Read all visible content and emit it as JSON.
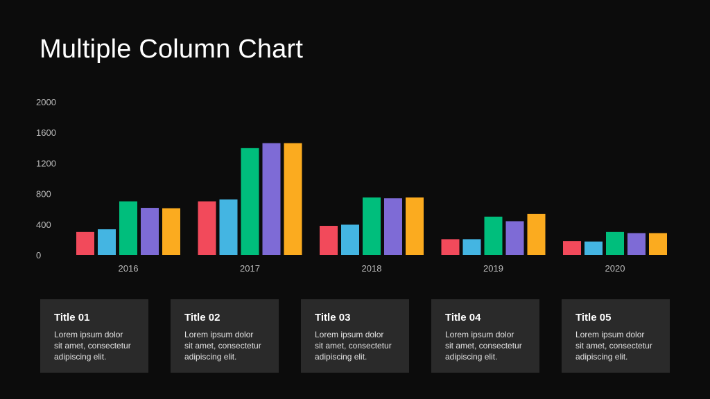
{
  "title": "Multiple Column Chart",
  "chart_data": {
    "type": "bar",
    "categories": [
      "2016",
      "2017",
      "2018",
      "2019",
      "2020"
    ],
    "series": [
      {
        "color": "#f24a5b",
        "values": [
          300,
          700,
          380,
          205,
          180
        ]
      },
      {
        "color": "#44b5e2",
        "values": [
          335,
          725,
          395,
          205,
          175
        ]
      },
      {
        "color": "#00be7c",
        "values": [
          700,
          1395,
          750,
          500,
          300
        ]
      },
      {
        "color": "#7e6bd6",
        "values": [
          615,
          1460,
          740,
          440,
          285
        ]
      },
      {
        "color": "#fbab1f",
        "values": [
          610,
          1460,
          750,
          535,
          285
        ]
      }
    ],
    "yticks": [
      "0",
      "400",
      "800",
      "1200",
      "1600",
      "2000"
    ],
    "ylim": [
      0,
      2000
    ],
    "grid": false,
    "legend": "none"
  },
  "cards": [
    {
      "title": "Title 01",
      "lines": [
        "Lorem ipsum dolor",
        "sit amet, consectetur",
        "adipiscing elit."
      ]
    },
    {
      "title": "Title 02",
      "lines": [
        "Lorem ipsum dolor",
        "sit amet, consectetur",
        "adipiscing elit."
      ]
    },
    {
      "title": "Title 03",
      "lines": [
        "Lorem ipsum dolor",
        "sit amet, consectetur",
        "adipiscing elit."
      ]
    },
    {
      "title": "Title 04",
      "lines": [
        "Lorem ipsum dolor",
        "sit amet, consectetur",
        "adipiscing elit."
      ]
    },
    {
      "title": "Title 05",
      "lines": [
        "Lorem ipsum dolor",
        "sit amet, consectetur",
        "adipiscing elit."
      ]
    }
  ]
}
